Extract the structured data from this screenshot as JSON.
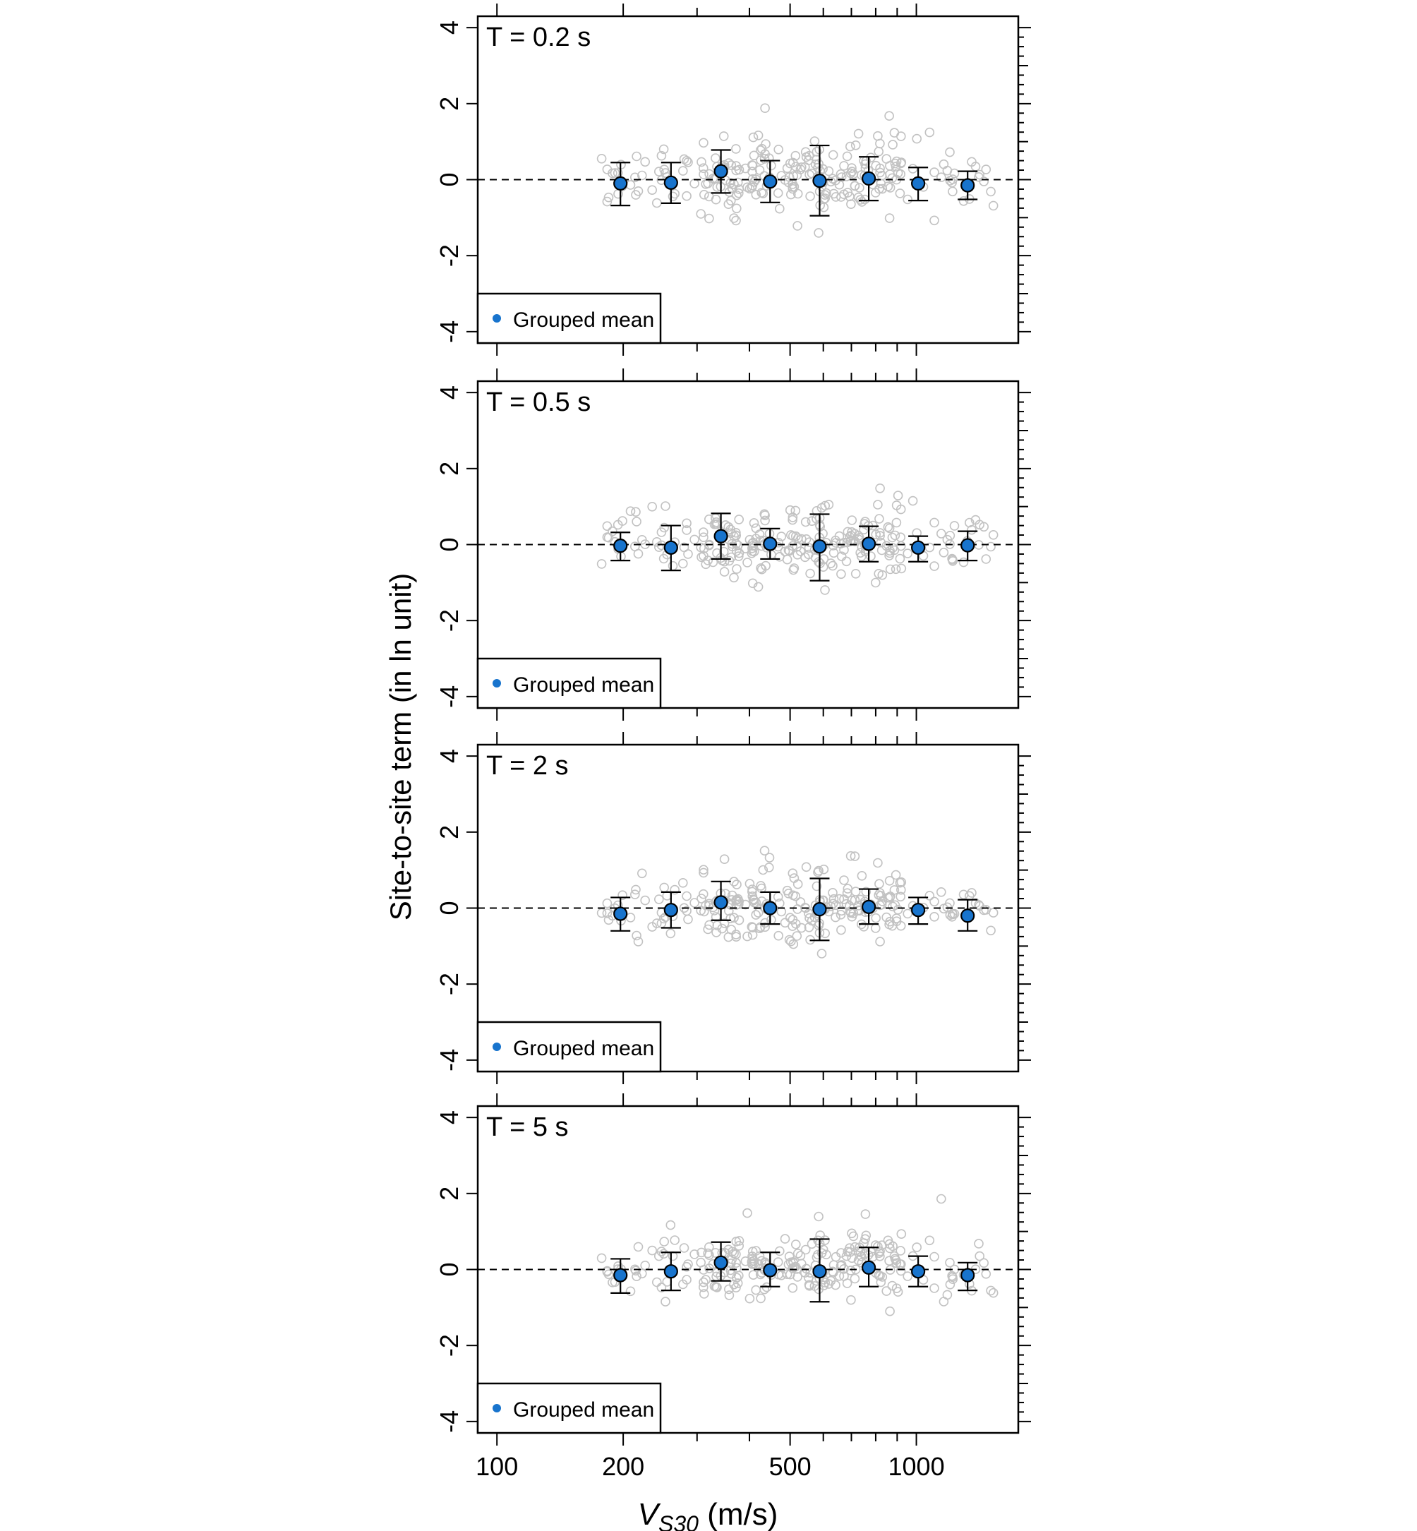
{
  "figure": {
    "y_axis_label": "Site-to-site term (in ln unit)",
    "x_axis_label_main": "V",
    "x_axis_label_sub": "S30",
    "x_axis_label_unit": " (m/s)",
    "legend_label": "Grouped mean",
    "mean_color": "#1874CD",
    "point_color": "#c2c2c2"
  },
  "chart_data": [
    {
      "type": "scatter",
      "panel_title": "T = 0.2 s",
      "x_scale": "log",
      "xlim": [
        90,
        1750
      ],
      "ylim": [
        -4.3,
        4.3
      ],
      "x_ticks": [
        100,
        200,
        500,
        1000
      ],
      "x_tick_labels": [
        "100",
        "200",
        "500",
        "1000"
      ],
      "y_ticks": [
        -4,
        -2,
        0,
        2,
        4
      ],
      "y_tick_labels": [
        "-4",
        "-2",
        "0",
        "2",
        "4"
      ],
      "reference_line_y": 0,
      "legend": "Grouped mean",
      "grouped_mean": {
        "x": [
          197,
          260,
          342,
          448,
          588,
          770,
          1010,
          1325
        ],
        "y": [
          -0.1,
          -0.08,
          0.22,
          -0.05,
          -0.03,
          0.03,
          -0.1,
          -0.15
        ],
        "lower": [
          -0.68,
          -0.62,
          -0.35,
          -0.6,
          -0.95,
          -0.55,
          -0.55,
          -0.52
        ],
        "upper": [
          0.45,
          0.45,
          0.78,
          0.5,
          0.9,
          0.6,
          0.32,
          0.22
        ]
      }
    },
    {
      "type": "scatter",
      "panel_title": "T = 0.5 s",
      "x_scale": "log",
      "xlim": [
        90,
        1750
      ],
      "ylim": [
        -4.3,
        4.3
      ],
      "x_ticks": [
        100,
        200,
        500,
        1000
      ],
      "x_tick_labels": [
        "100",
        "200",
        "500",
        "1000"
      ],
      "y_ticks": [
        -4,
        -2,
        0,
        2,
        4
      ],
      "y_tick_labels": [
        "-4",
        "-2",
        "0",
        "2",
        "4"
      ],
      "reference_line_y": 0,
      "legend": "Grouped mean",
      "grouped_mean": {
        "x": [
          197,
          260,
          342,
          448,
          588,
          770,
          1010,
          1325
        ],
        "y": [
          -0.03,
          -0.08,
          0.22,
          0.02,
          -0.05,
          0.02,
          -0.08,
          -0.02
        ],
        "lower": [
          -0.42,
          -0.68,
          -0.38,
          -0.38,
          -0.95,
          -0.45,
          -0.45,
          -0.42
        ],
        "upper": [
          0.32,
          0.5,
          0.82,
          0.42,
          0.8,
          0.48,
          0.22,
          0.35
        ]
      }
    },
    {
      "type": "scatter",
      "panel_title": "T = 2 s",
      "x_scale": "log",
      "xlim": [
        90,
        1750
      ],
      "ylim": [
        -4.3,
        4.3
      ],
      "x_ticks": [
        100,
        200,
        500,
        1000
      ],
      "x_tick_labels": [
        "100",
        "200",
        "500",
        "1000"
      ],
      "y_ticks": [
        -4,
        -2,
        0,
        2,
        4
      ],
      "y_tick_labels": [
        "-4",
        "-2",
        "0",
        "2",
        "4"
      ],
      "reference_line_y": 0,
      "legend": "Grouped mean",
      "grouped_mean": {
        "x": [
          197,
          260,
          342,
          448,
          588,
          770,
          1010,
          1325
        ],
        "y": [
          -0.15,
          -0.05,
          0.15,
          0.0,
          -0.03,
          0.03,
          -0.05,
          -0.2
        ],
        "lower": [
          -0.6,
          -0.52,
          -0.32,
          -0.42,
          -0.85,
          -0.42,
          -0.42,
          -0.6
        ],
        "upper": [
          0.28,
          0.42,
          0.7,
          0.42,
          0.78,
          0.5,
          0.28,
          0.22
        ]
      }
    },
    {
      "type": "scatter",
      "panel_title": "T = 5 s",
      "x_scale": "log",
      "xlim": [
        90,
        1750
      ],
      "ylim": [
        -4.3,
        4.3
      ],
      "x_ticks": [
        100,
        200,
        500,
        1000
      ],
      "x_tick_labels": [
        "100",
        "200",
        "500",
        "1000"
      ],
      "y_ticks": [
        -4,
        -2,
        0,
        2,
        4
      ],
      "y_tick_labels": [
        "-4",
        "-2",
        "0",
        "2",
        "4"
      ],
      "reference_line_y": 0,
      "legend": "Grouped mean",
      "grouped_mean": {
        "x": [
          197,
          260,
          342,
          448,
          588,
          770,
          1010,
          1325
        ],
        "y": [
          -0.15,
          -0.05,
          0.18,
          -0.02,
          -0.05,
          0.05,
          -0.05,
          -0.15
        ],
        "lower": [
          -0.62,
          -0.55,
          -0.3,
          -0.45,
          -0.85,
          -0.45,
          -0.45,
          -0.55
        ],
        "upper": [
          0.28,
          0.45,
          0.72,
          0.45,
          0.8,
          0.58,
          0.35,
          0.18
        ]
      }
    }
  ]
}
